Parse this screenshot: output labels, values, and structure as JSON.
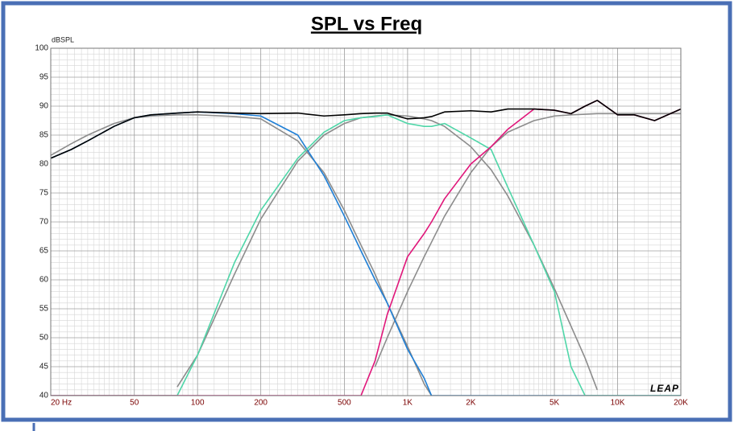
{
  "chart_data": {
    "type": "line",
    "title": "SPL vs Freq",
    "y_label": "dBSPL",
    "logo": "LEAP",
    "x_log": true,
    "grid": true,
    "x": [
      20,
      25,
      30,
      40,
      50,
      60,
      80,
      100,
      150,
      200,
      300,
      400,
      500,
      600,
      700,
      800,
      1000,
      1200,
      1300,
      1500,
      2000,
      2500,
      3000,
      4000,
      5000,
      6000,
      7000,
      8000,
      10000,
      12000,
      15000,
      20000
    ],
    "xlim": [
      20,
      20000
    ],
    "xticks": [
      {
        "value": 20,
        "label": "20  Hz"
      },
      50,
      100,
      200,
      500,
      {
        "value": 1000,
        "label": "1K"
      },
      {
        "value": 2000,
        "label": "2K"
      },
      {
        "value": 5000,
        "label": "5K"
      },
      {
        "value": 10000,
        "label": "10K"
      },
      {
        "value": 20000,
        "label": "20K"
      }
    ],
    "ylim": [
      40,
      100
    ],
    "yticks": [
      40,
      45,
      50,
      55,
      60,
      65,
      70,
      75,
      80,
      85,
      90,
      95,
      100
    ],
    "series": [
      {
        "color": "#8c8c8c",
        "values": [
          81.5,
          83.5,
          85,
          87,
          88,
          88.3,
          88.5,
          88.5,
          88.2,
          87.8,
          84,
          78.5,
          72,
          66,
          61,
          56,
          48.5,
          42,
          40,
          null,
          null,
          null,
          null,
          null,
          null,
          null,
          null,
          null,
          null,
          null,
          null,
          null
        ]
      },
      {
        "color": "#8c8c8c",
        "values": [
          null,
          null,
          null,
          null,
          null,
          null,
          41.5,
          47,
          61,
          70.5,
          80.5,
          85,
          87,
          88,
          88.3,
          88.5,
          88.3,
          87.8,
          87.5,
          86.5,
          83,
          79,
          74.5,
          66,
          58.5,
          52,
          46.5,
          41,
          null,
          null,
          null,
          null
        ]
      },
      {
        "color": "#8c8c8c",
        "values": [
          null,
          null,
          null,
          null,
          null,
          null,
          null,
          null,
          null,
          null,
          null,
          null,
          null,
          null,
          45,
          50,
          58,
          64,
          66.5,
          71,
          78.5,
          83,
          85.5,
          87.5,
          88.3,
          88.5,
          88.6,
          88.7,
          88.7,
          88.7,
          88.7,
          88.7
        ]
      },
      {
        "color": "#1f7fd6",
        "values": [
          81,
          82.5,
          84,
          86.5,
          88,
          88.5,
          88.8,
          89,
          88.7,
          88.3,
          85,
          78,
          71,
          65,
          60,
          56,
          48,
          43,
          40,
          40,
          40,
          40,
          40,
          40,
          40,
          40,
          40,
          40,
          40,
          40,
          40,
          40
        ]
      },
      {
        "color": "#4fd6a8",
        "values": [
          40,
          40,
          40,
          40,
          40,
          40,
          40,
          47,
          63,
          72,
          81,
          85.5,
          87.5,
          88,
          88.2,
          88.5,
          87,
          86.5,
          86.5,
          87,
          84.5,
          82.5,
          76,
          66,
          58,
          45,
          40,
          40,
          40,
          40,
          40,
          40
        ]
      },
      {
        "color": "#e0167a",
        "values": [
          40,
          40,
          40,
          40,
          40,
          40,
          40,
          40,
          40,
          40,
          40,
          40,
          40,
          40,
          46,
          54,
          64,
          68,
          70,
          74,
          80,
          83,
          86,
          89.5,
          89.3,
          88.7,
          90,
          91,
          88.5,
          88.5,
          87.5,
          89.5
        ]
      },
      {
        "color": "#000000",
        "values": [
          81,
          82.5,
          84,
          86.5,
          88,
          88.5,
          88.8,
          89,
          88.8,
          88.7,
          88.8,
          88.3,
          88.5,
          88.7,
          88.8,
          88.8,
          87.8,
          88,
          88.2,
          89,
          89.2,
          89,
          89.5,
          89.5,
          89.3,
          88.7,
          90,
          91,
          88.5,
          88.5,
          87.5,
          89.5
        ]
      }
    ]
  }
}
